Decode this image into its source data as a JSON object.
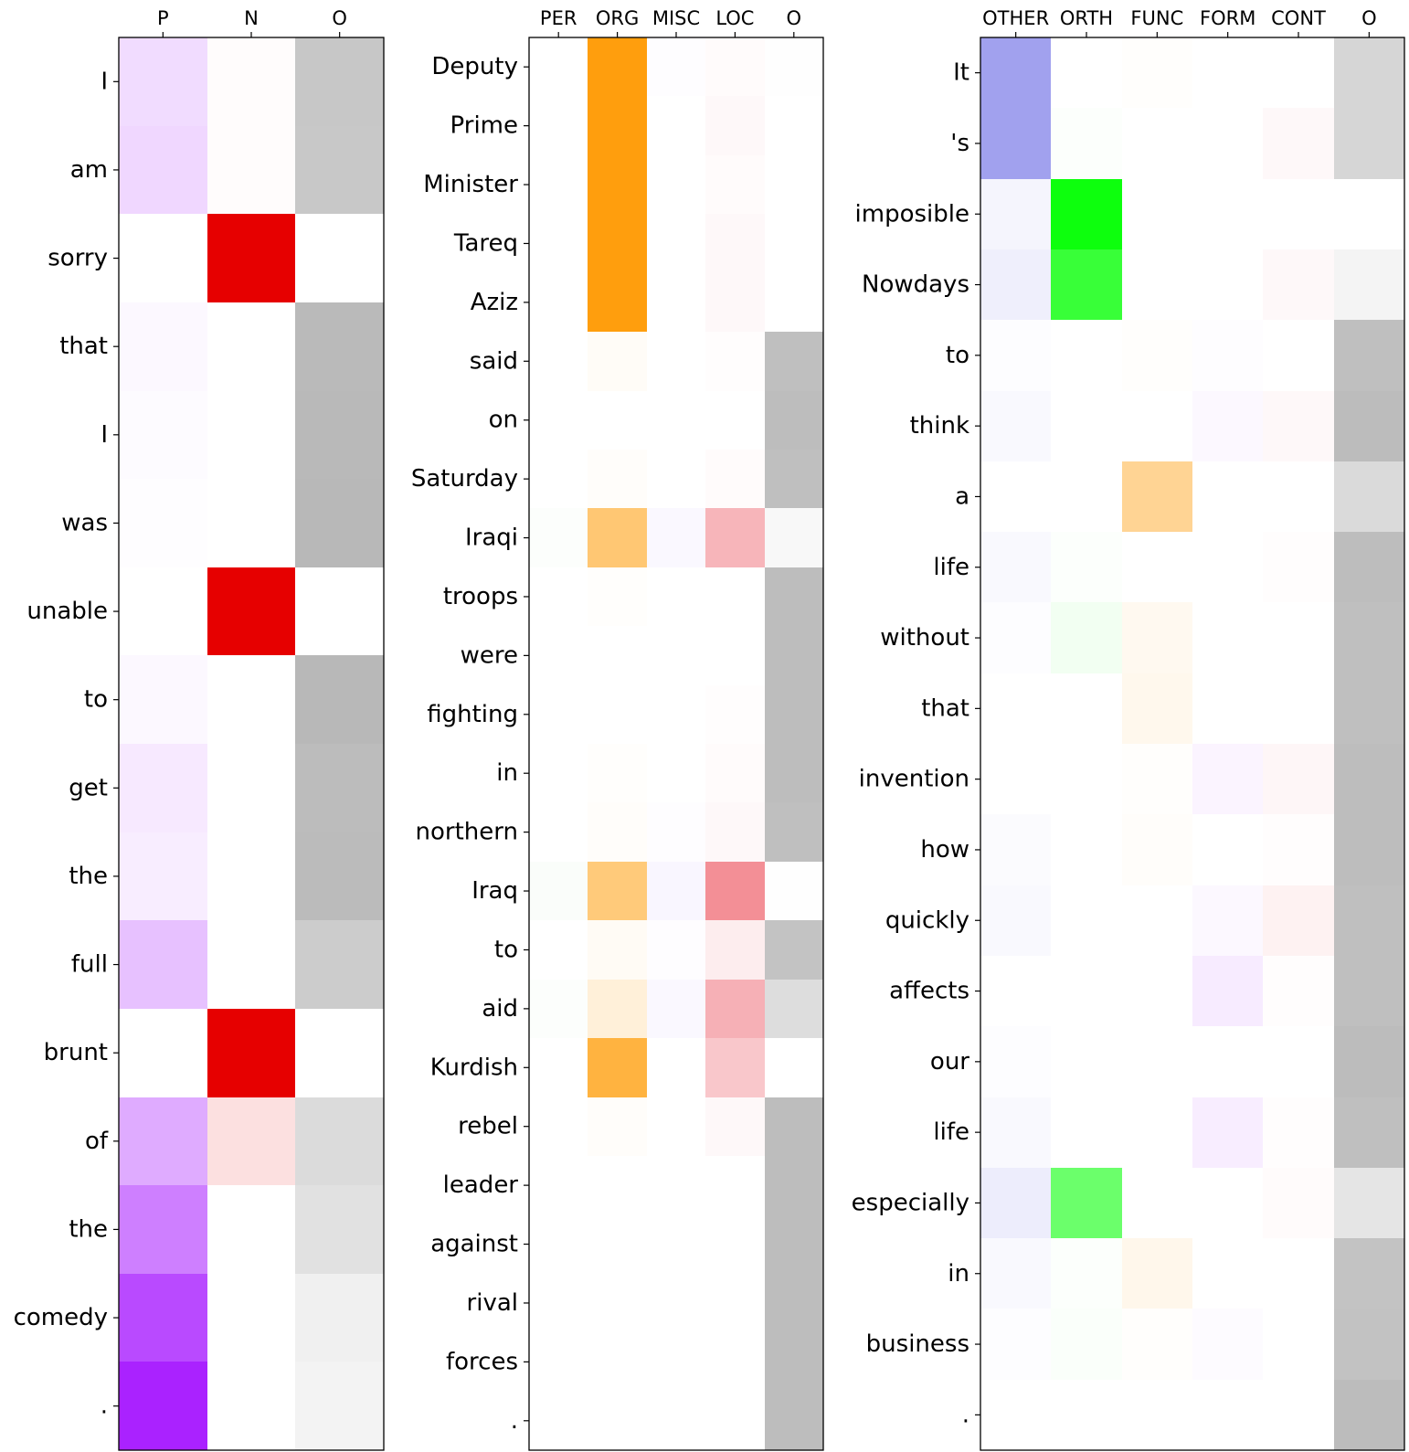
{
  "chart_data": [
    {
      "type": "heatmap",
      "columns": [
        "P",
        "N",
        "O"
      ],
      "rows": [
        "I",
        "am",
        "sorry",
        "that",
        "I",
        "was",
        "unable",
        "to",
        "get",
        "the",
        "full",
        "brunt",
        "of",
        "the",
        "comedy",
        "."
      ],
      "column_colors": [
        "#aa22ff",
        "#e60000",
        "#b4b4b4"
      ],
      "values": [
        [
          0.16,
          0.01,
          0.75
        ],
        [
          0.18,
          0.01,
          0.74
        ],
        [
          0.0,
          1.0,
          0.0
        ],
        [
          0.03,
          0.0,
          0.92
        ],
        [
          0.02,
          0.0,
          0.93
        ],
        [
          0.01,
          0.0,
          0.95
        ],
        [
          0.0,
          1.0,
          0.0
        ],
        [
          0.03,
          0.0,
          0.95
        ],
        [
          0.1,
          0.0,
          0.9
        ],
        [
          0.08,
          0.0,
          0.91
        ],
        [
          0.28,
          0.0,
          0.68
        ],
        [
          0.0,
          1.0,
          0.0
        ],
        [
          0.38,
          0.12,
          0.48
        ],
        [
          0.58,
          0.0,
          0.4
        ],
        [
          0.82,
          0.0,
          0.2
        ],
        [
          1.0,
          0.0,
          0.16
        ]
      ]
    },
    {
      "type": "heatmap",
      "columns": [
        "PER",
        "ORG",
        "MISC",
        "LOC",
        "O"
      ],
      "rows": [
        "Deputy",
        "Prime",
        "Minister",
        "Tareq",
        "Aziz",
        "said",
        "on",
        "Saturday",
        "Iraqi",
        "troops",
        "were",
        "fighting",
        "in",
        "northern",
        "Iraq",
        "to",
        "aid",
        "Kurdish",
        "rebel",
        "leader",
        "against",
        "rival",
        "forces",
        "."
      ],
      "column_colors": [
        "#00aa00",
        "#ff9900",
        "#8844ff",
        "#e61e2d",
        "#b4b4b4"
      ],
      "values": [
        [
          0.0,
          0.95,
          0.01,
          0.02,
          0.01
        ],
        [
          0.0,
          0.95,
          0.0,
          0.03,
          0.0
        ],
        [
          0.0,
          0.95,
          0.0,
          0.02,
          0.0
        ],
        [
          0.0,
          0.95,
          0.0,
          0.03,
          0.0
        ],
        [
          0.0,
          0.95,
          0.0,
          0.03,
          0.0
        ],
        [
          0.0,
          0.03,
          0.0,
          0.01,
          0.85
        ],
        [
          0.0,
          0.0,
          0.0,
          0.0,
          0.88
        ],
        [
          0.0,
          0.02,
          0.0,
          0.02,
          0.86
        ],
        [
          0.01,
          0.55,
          0.04,
          0.33,
          0.1
        ],
        [
          0.0,
          0.01,
          0.0,
          0.0,
          0.88
        ],
        [
          0.0,
          0.0,
          0.0,
          0.0,
          0.88
        ],
        [
          0.0,
          0.0,
          0.0,
          0.01,
          0.88
        ],
        [
          0.0,
          0.01,
          0.0,
          0.02,
          0.88
        ],
        [
          0.0,
          0.02,
          0.01,
          0.03,
          0.85
        ],
        [
          0.02,
          0.52,
          0.05,
          0.5,
          0.02
        ],
        [
          0.0,
          0.04,
          0.01,
          0.08,
          0.8
        ],
        [
          0.01,
          0.15,
          0.04,
          0.35,
          0.45
        ],
        [
          0.0,
          0.75,
          0.0,
          0.25,
          0.0
        ],
        [
          0.0,
          0.02,
          0.0,
          0.03,
          0.88
        ],
        [
          0.0,
          0.0,
          0.0,
          0.0,
          0.88
        ],
        [
          0.0,
          0.0,
          0.0,
          0.0,
          0.88
        ],
        [
          0.0,
          0.0,
          0.0,
          0.0,
          0.88
        ],
        [
          0.0,
          0.0,
          0.0,
          0.0,
          0.88
        ],
        [
          0.0,
          0.0,
          0.0,
          0.0,
          0.88
        ]
      ]
    },
    {
      "type": "heatmap",
      "columns": [
        "OTHER",
        "ORTH",
        "FUNC",
        "FORM",
        "CONT",
        "O"
      ],
      "rows": [
        "It",
        "'s",
        "imposible",
        "Nowdays",
        "to",
        "think",
        "a",
        "life",
        "without",
        "that",
        "invention",
        "how",
        "quickly",
        "affects",
        "our",
        "life",
        "especially",
        "in",
        "business",
        "."
      ],
      "column_colors": [
        "#3c3cdc",
        "#00ff00",
        "#ff9900",
        "#aa22ff",
        "#e61e2d",
        "#b4b4b4"
      ],
      "values": [
        [
          0.48,
          0.0,
          0.01,
          0.0,
          0.0,
          0.55
        ],
        [
          0.48,
          0.01,
          0.0,
          0.0,
          0.03,
          0.55
        ],
        [
          0.05,
          0.95,
          0.0,
          0.0,
          0.0,
          0.0
        ],
        [
          0.08,
          0.78,
          0.0,
          0.0,
          0.03,
          0.15
        ],
        [
          0.01,
          0.0,
          0.01,
          0.01,
          0.0,
          0.85
        ],
        [
          0.03,
          0.0,
          0.0,
          0.03,
          0.03,
          0.9
        ],
        [
          0.0,
          0.0,
          0.42,
          0.0,
          0.0,
          0.5
        ],
        [
          0.03,
          0.01,
          0.0,
          0.0,
          0.01,
          0.88
        ],
        [
          0.01,
          0.05,
          0.06,
          0.0,
          0.0,
          0.85
        ],
        [
          0.0,
          0.0,
          0.07,
          0.0,
          0.0,
          0.85
        ],
        [
          0.0,
          0.0,
          0.01,
          0.05,
          0.04,
          0.88
        ],
        [
          0.02,
          0.0,
          0.02,
          0.0,
          0.01,
          0.88
        ],
        [
          0.03,
          0.0,
          0.0,
          0.03,
          0.06,
          0.86
        ],
        [
          0.0,
          0.0,
          0.0,
          0.09,
          0.01,
          0.86
        ],
        [
          0.01,
          0.0,
          0.0,
          0.0,
          0.0,
          0.9
        ],
        [
          0.03,
          0.0,
          0.0,
          0.08,
          0.01,
          0.86
        ],
        [
          0.09,
          0.58,
          0.0,
          0.0,
          0.02,
          0.35
        ],
        [
          0.03,
          0.01,
          0.08,
          0.0,
          0.0,
          0.8
        ],
        [
          0.01,
          0.02,
          0.01,
          0.02,
          0.0,
          0.82
        ],
        [
          0.0,
          0.0,
          0.0,
          0.0,
          0.0,
          0.9
        ]
      ]
    }
  ]
}
